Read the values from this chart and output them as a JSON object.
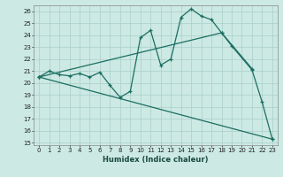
{
  "xlabel": "Humidex (Indice chaleur)",
  "ylabel": "",
  "xlim": [
    -0.5,
    23.5
  ],
  "ylim": [
    14.8,
    26.5
  ],
  "yticks": [
    15,
    16,
    17,
    18,
    19,
    20,
    21,
    22,
    23,
    24,
    25,
    26
  ],
  "xticks": [
    0,
    1,
    2,
    3,
    4,
    5,
    6,
    7,
    8,
    9,
    10,
    11,
    12,
    13,
    14,
    15,
    16,
    17,
    18,
    19,
    20,
    21,
    22,
    23
  ],
  "bg_color": "#cce9e4",
  "grid_color": "#aacfc9",
  "line_color": "#1a6e60",
  "series1": {
    "x": [
      0,
      1,
      2,
      3,
      4,
      5,
      6,
      7,
      8,
      9,
      10,
      11,
      12,
      13,
      14,
      15,
      16,
      17,
      18,
      21
    ],
    "y": [
      20.5,
      21.0,
      20.7,
      20.6,
      20.8,
      20.5,
      20.9,
      19.8,
      18.8,
      19.3,
      23.8,
      24.4,
      21.5,
      22.0,
      25.5,
      26.2,
      25.6,
      25.3,
      24.2,
      21.2
    ]
  },
  "series2": {
    "x": [
      0,
      23
    ],
    "y": [
      20.5,
      15.3
    ]
  },
  "series3": {
    "x": [
      0,
      18,
      19,
      21,
      22,
      23
    ],
    "y": [
      20.5,
      24.2,
      23.1,
      21.1,
      18.4,
      15.3
    ]
  }
}
